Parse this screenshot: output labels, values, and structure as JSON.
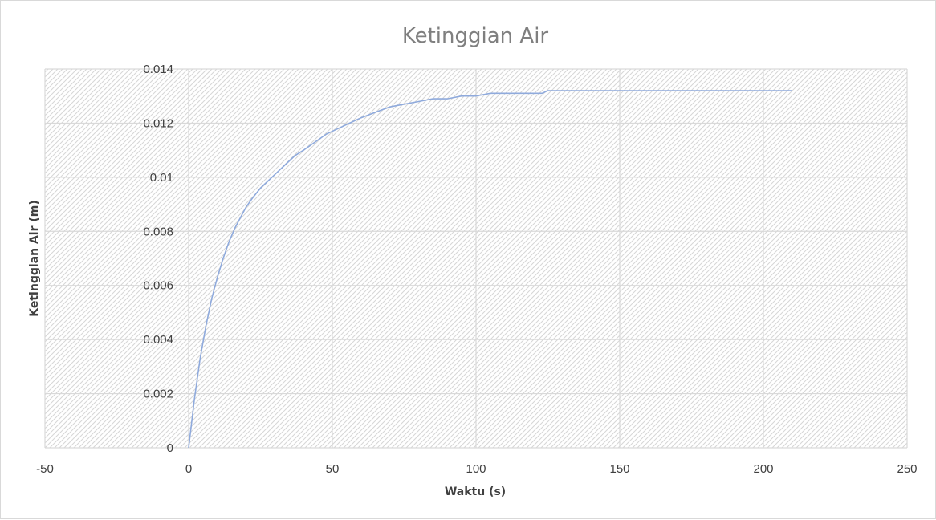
{
  "chart_data": {
    "type": "line",
    "title": "Ketinggian Air",
    "xlabel": "Waktu (s)",
    "ylabel": "Ketinggian Air (m)",
    "xlim": [
      -50,
      250
    ],
    "ylim": [
      0,
      0.014
    ],
    "x_ticks": [
      -50,
      0,
      50,
      100,
      150,
      200,
      250
    ],
    "x_tick_labels": [
      "-50",
      "0",
      "50",
      "100",
      "150",
      "200",
      "250"
    ],
    "y_ticks": [
      0,
      0.002,
      0.004,
      0.006,
      0.008,
      0.01,
      0.012,
      0.014
    ],
    "y_tick_labels": [
      "0",
      "0.002",
      "0.004",
      "0.006",
      "0.008",
      "0.01",
      "0.012",
      "0.014"
    ],
    "grid": true,
    "legend": "none",
    "line_color": "#8faadc",
    "series": [
      {
        "x": [
          0,
          1,
          2,
          4,
          6,
          8,
          10,
          12,
          14,
          16,
          18,
          20,
          22,
          25,
          28,
          31,
          34,
          37,
          40,
          44,
          48,
          52,
          56,
          60,
          65,
          70,
          75,
          80,
          85,
          90,
          95,
          100,
          105,
          110,
          115,
          120,
          123,
          125,
          150,
          175,
          200,
          210
        ],
        "y": [
          0,
          0.0009,
          0.0018,
          0.0033,
          0.0045,
          0.0055,
          0.0063,
          0.007,
          0.0076,
          0.0081,
          0.0085,
          0.0089,
          0.0092,
          0.0096,
          0.0099,
          0.0102,
          0.0105,
          0.0108,
          0.011,
          0.0113,
          0.0116,
          0.0118,
          0.012,
          0.0122,
          0.0124,
          0.0126,
          0.0127,
          0.0128,
          0.0129,
          0.0129,
          0.013,
          0.013,
          0.0131,
          0.0131,
          0.0131,
          0.0131,
          0.0131,
          0.0132,
          0.0132,
          0.0132,
          0.0132,
          0.0132
        ]
      }
    ]
  }
}
